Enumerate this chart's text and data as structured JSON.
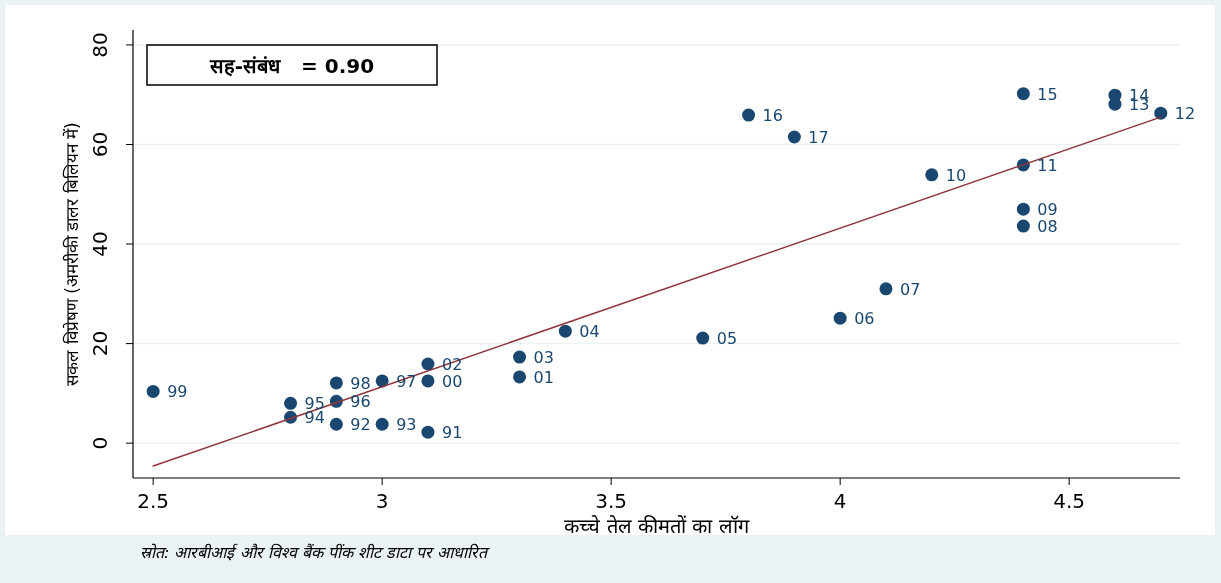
{
  "chart_data": {
    "type": "scatter",
    "xlabel": "कच्चे तेल कीमतों का लॉग",
    "ylabel": "सकल विप्रेषण (अमरीकी डालर बिलियन में)",
    "xlim": [
      2.456,
      4.742
    ],
    "ylim": [
      -7,
      83
    ],
    "xticks": [
      2.5,
      3,
      3.5,
      4,
      4.5
    ],
    "yticks": [
      0,
      20,
      40,
      60,
      80
    ],
    "grid": "y",
    "marker": "circle",
    "series": [
      {
        "color": "#1a476f",
        "x": [
          2.5,
          2.8,
          2.8,
          2.9,
          2.9,
          2.9,
          3.0,
          3.0,
          3.1,
          3.1,
          3.1,
          3.3,
          3.3,
          3.4,
          3.7,
          4.0,
          4.1,
          3.8,
          3.9,
          4.2,
          4.4,
          4.4,
          4.4,
          4.4,
          4.6,
          4.6,
          4.7
        ],
        "values": [
          10.4,
          8.0,
          5.2,
          12.1,
          8.4,
          3.8,
          12.5,
          3.8,
          15.9,
          12.5,
          2.2,
          17.3,
          13.3,
          22.5,
          21.1,
          25.1,
          31.0,
          65.9,
          61.5,
          53.9,
          55.9,
          47.0,
          43.6,
          70.2,
          69.9,
          68.1,
          66.3
        ]
      },
      {
        "type": "line",
        "marker": "none",
        "color": "#90353b",
        "x": [
          2.5,
          4.7
        ],
        "values": [
          -4.6,
          65.5
        ]
      }
    ],
    "annotations": [
      "सह-संबंध   = 0.90",
      "स्रोत: आरबीआई और विश्व बैंक पींक शीट डाटा पर आधारित",
      {
        "text": "99",
        "x": 2.5,
        "y": 10.4
      },
      {
        "text": "95",
        "x": 2.8,
        "y": 8.0
      },
      {
        "text": "94",
        "x": 2.8,
        "y": 5.2
      },
      {
        "text": "98",
        "x": 2.9,
        "y": 12.1
      },
      {
        "text": "96",
        "x": 2.9,
        "y": 8.4
      },
      {
        "text": "92",
        "x": 2.9,
        "y": 3.8
      },
      {
        "text": "97",
        "x": 3.0,
        "y": 12.5
      },
      {
        "text": "93",
        "x": 3.0,
        "y": 3.8
      },
      {
        "text": "02",
        "x": 3.1,
        "y": 15.9
      },
      {
        "text": "00",
        "x": 3.1,
        "y": 12.5
      },
      {
        "text": "91",
        "x": 3.1,
        "y": 2.2
      },
      {
        "text": "03",
        "x": 3.3,
        "y": 17.3
      },
      {
        "text": "01",
        "x": 3.3,
        "y": 13.3
      },
      {
        "text": "04",
        "x": 3.4,
        "y": 22.5
      },
      {
        "text": "05",
        "x": 3.7,
        "y": 21.1
      },
      {
        "text": "06",
        "x": 4.0,
        "y": 25.1
      },
      {
        "text": "07",
        "x": 4.1,
        "y": 31.0
      },
      {
        "text": "16",
        "x": 3.8,
        "y": 65.9
      },
      {
        "text": "17",
        "x": 3.9,
        "y": 61.5
      },
      {
        "text": "10",
        "x": 4.2,
        "y": 53.9
      },
      {
        "text": "11",
        "x": 4.4,
        "y": 55.9
      },
      {
        "text": "09",
        "x": 4.4,
        "y": 47.0
      },
      {
        "text": "08",
        "x": 4.4,
        "y": 43.6
      },
      {
        "text": "15",
        "x": 4.4,
        "y": 70.2
      },
      {
        "text": "14",
        "x": 4.6,
        "y": 69.9
      },
      {
        "text": "13",
        "x": 4.6,
        "y": 68.1
      },
      {
        "text": "12",
        "x": 4.7,
        "y": 66.3
      }
    ]
  }
}
